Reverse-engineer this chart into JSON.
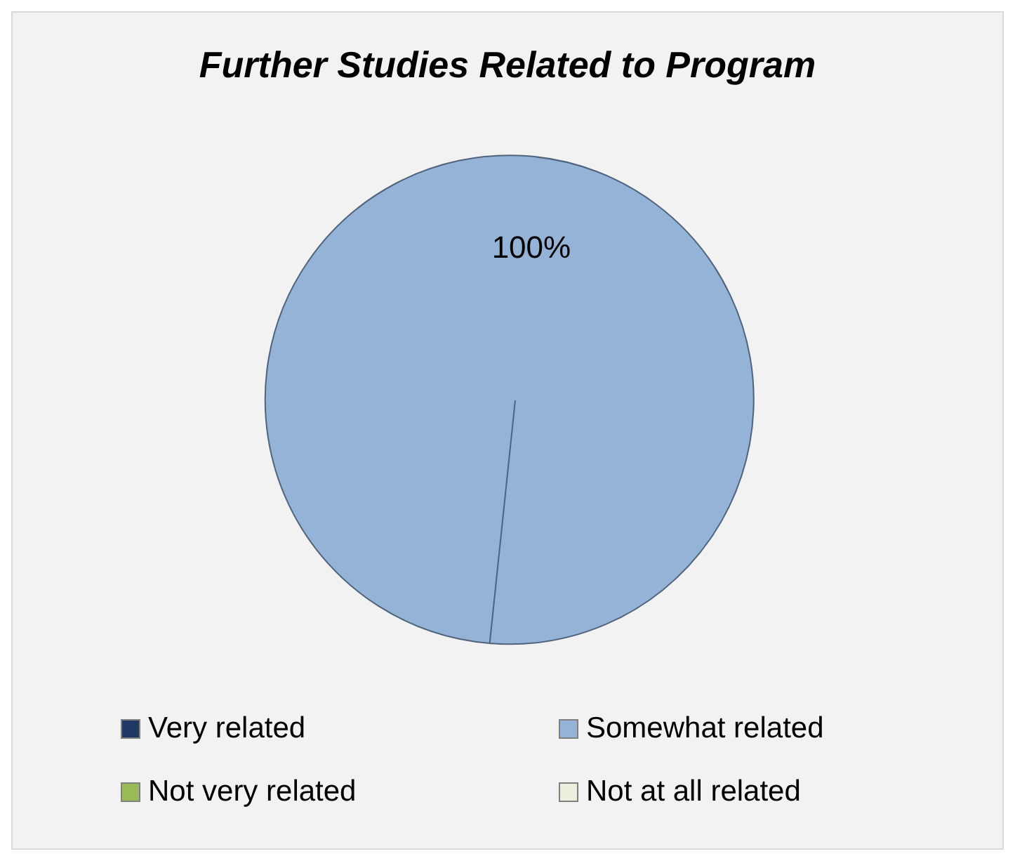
{
  "chart_data": {
    "type": "pie",
    "title": "Further Studies Related to Program",
    "categories": [
      "Very related",
      "Somewhat related",
      "Not very related",
      "Not at all related"
    ],
    "values": [
      0,
      100,
      0,
      0
    ],
    "value_labels": [
      null,
      "100%",
      null,
      null
    ],
    "colors": [
      "#1f3864",
      "#95b3d7",
      "#9bbb59",
      "#ebf1de"
    ],
    "legend": "bottom"
  }
}
